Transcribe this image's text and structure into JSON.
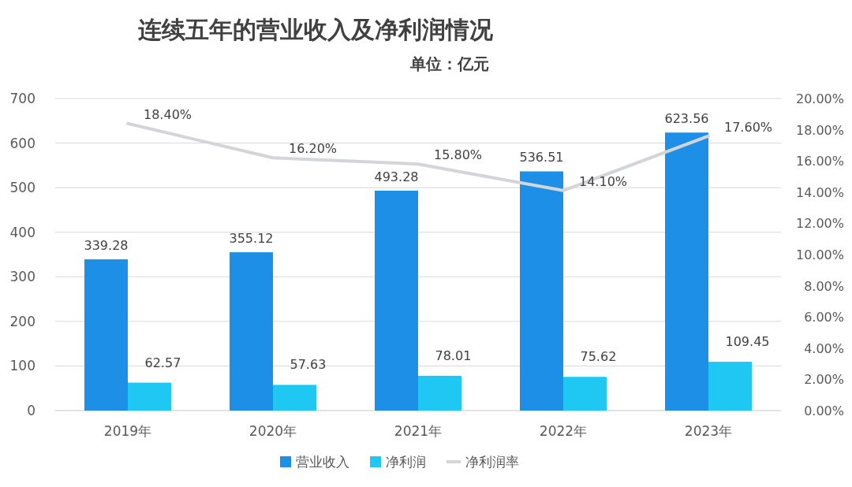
{
  "chart_data": {
    "type": "bar",
    "title": "连续五年的营业收入及净利润情况",
    "subtitle": "单位：亿元",
    "categories": [
      "2019年",
      "2020年",
      "2021年",
      "2022年",
      "2023年"
    ],
    "series": [
      {
        "name": "营业收入",
        "color": "#1e8fe6",
        "values": [
          339.28,
          355.12,
          493.28,
          536.51,
          623.56
        ],
        "value_labels": [
          "339.28",
          "355.12",
          "493.28",
          "536.51",
          "623.56"
        ]
      },
      {
        "name": "净利润",
        "color": "#1ec8f2",
        "values": [
          62.57,
          57.63,
          78.01,
          75.62,
          109.45
        ],
        "value_labels": [
          "62.57",
          "57.63",
          "78.01",
          "75.62",
          "109.45"
        ]
      },
      {
        "name": "净利润率",
        "type": "line",
        "axis": "y2",
        "color": "#d3d5d9",
        "values": [
          18.4,
          16.2,
          15.8,
          14.1,
          17.6
        ],
        "value_labels": [
          "18.40%",
          "16.20%",
          "15.80%",
          "14.10%",
          "17.60%"
        ]
      }
    ],
    "ylim": [
      0,
      700
    ],
    "yticks": [
      0,
      100,
      200,
      300,
      400,
      500,
      600,
      700
    ],
    "y2lim": [
      0,
      20
    ],
    "y2ticks": [
      {
        "value": 0,
        "label": "0.00%"
      },
      {
        "value": 2,
        "label": "2.00%"
      },
      {
        "value": 4,
        "label": "4.00%"
      },
      {
        "value": 6,
        "label": "6.00%"
      },
      {
        "value": 8,
        "label": "8.00%"
      },
      {
        "value": 10,
        "label": "10.00%"
      },
      {
        "value": 12,
        "label": "12.00%"
      },
      {
        "value": 14,
        "label": "14.00%"
      },
      {
        "value": 16,
        "label": "16.00%"
      },
      {
        "value": 18,
        "label": "18.00%"
      },
      {
        "value": 20,
        "label": "20.00%"
      }
    ],
    "grid": "y",
    "legend": "bottom"
  }
}
